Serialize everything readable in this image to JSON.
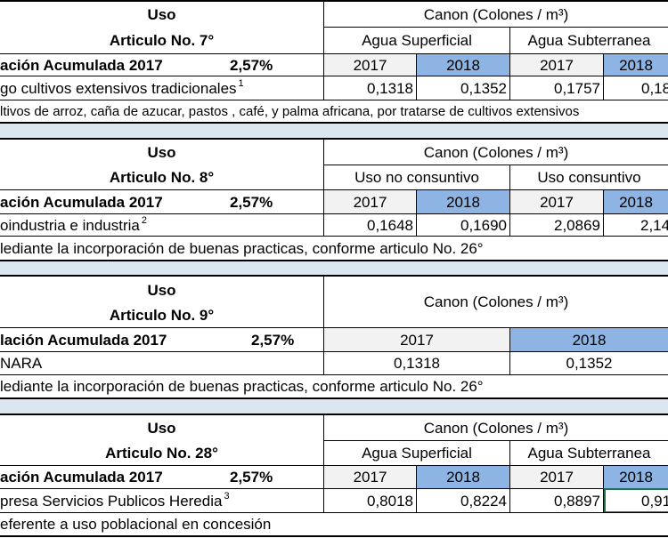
{
  "t7": {
    "uso": "Uso",
    "articulo": "Articulo No. 7°",
    "canon": "Canon (Colones / m³)",
    "col_a": "Agua Superficial",
    "col_b": "Agua Subterranea",
    "inflacion_label": "ación Acumulada 2017",
    "inflacion_val": "2,57%",
    "y1": "2017",
    "y2": "2018",
    "y3": "2017",
    "y4": "2018",
    "row_label": "go cultivos extensivos tradicionales",
    "row_sup": "1",
    "v1": "0,1318",
    "v2": "0,1352",
    "v3": "0,1757",
    "v4": "0,18",
    "note": "ltivos de arroz, caña de azucar, pastos , café, y palma africana, por tratarse de cultivos extensivos"
  },
  "t8": {
    "uso": "Uso",
    "articulo": "Articulo No. 8°",
    "canon": "Canon (Colones / m³)",
    "col_a": "Uso no consuntivo",
    "col_b": "Uso consuntivo",
    "inflacion_label": "ación Acumulada 2017",
    "inflacion_val": "2,57%",
    "y1": "2017",
    "y2": "2018",
    "y3": "2017",
    "y4": "2018",
    "row_label": "oindustria e industria",
    "row_sup": "2",
    "v1": "0,1648",
    "v2": "0,1690",
    "v3": "2,0869",
    "v4": "2,14",
    "note": "lediante la incorporación de buenas practicas, conforme articulo No. 26°"
  },
  "t9": {
    "uso": "Uso",
    "articulo": "Articulo No. 9°",
    "canon": "Canon (Colones / m³)",
    "inflacion_label": "lación Acumulada 2017",
    "inflacion_val": "2,57%",
    "y1": "2017",
    "y2": "2018",
    "row_label": "NARA",
    "v1": "0,1318",
    "v2": "0,1352",
    "note": "lediante la incorporación de buenas practicas, conforme articulo No. 26°"
  },
  "t28": {
    "uso": "Uso",
    "articulo": "Articulo No. 28°",
    "canon": "Canon (Colones / m³)",
    "col_a": "Agua Superficial",
    "col_b": "Agua Subterranea",
    "inflacion_label": "ación Acumulada 2017",
    "inflacion_val": "2,57%",
    "y1": "2017",
    "y2": "2018",
    "y3": "2017",
    "y4": "2018",
    "row_label": "presa Servicios Publicos Heredia",
    "row_sup": "3",
    "v1": "0,8018",
    "v2": "0,8224",
    "v3": "0,8897",
    "v4": "0,91",
    "note": "eferente  a uso poblacional en concesión"
  }
}
